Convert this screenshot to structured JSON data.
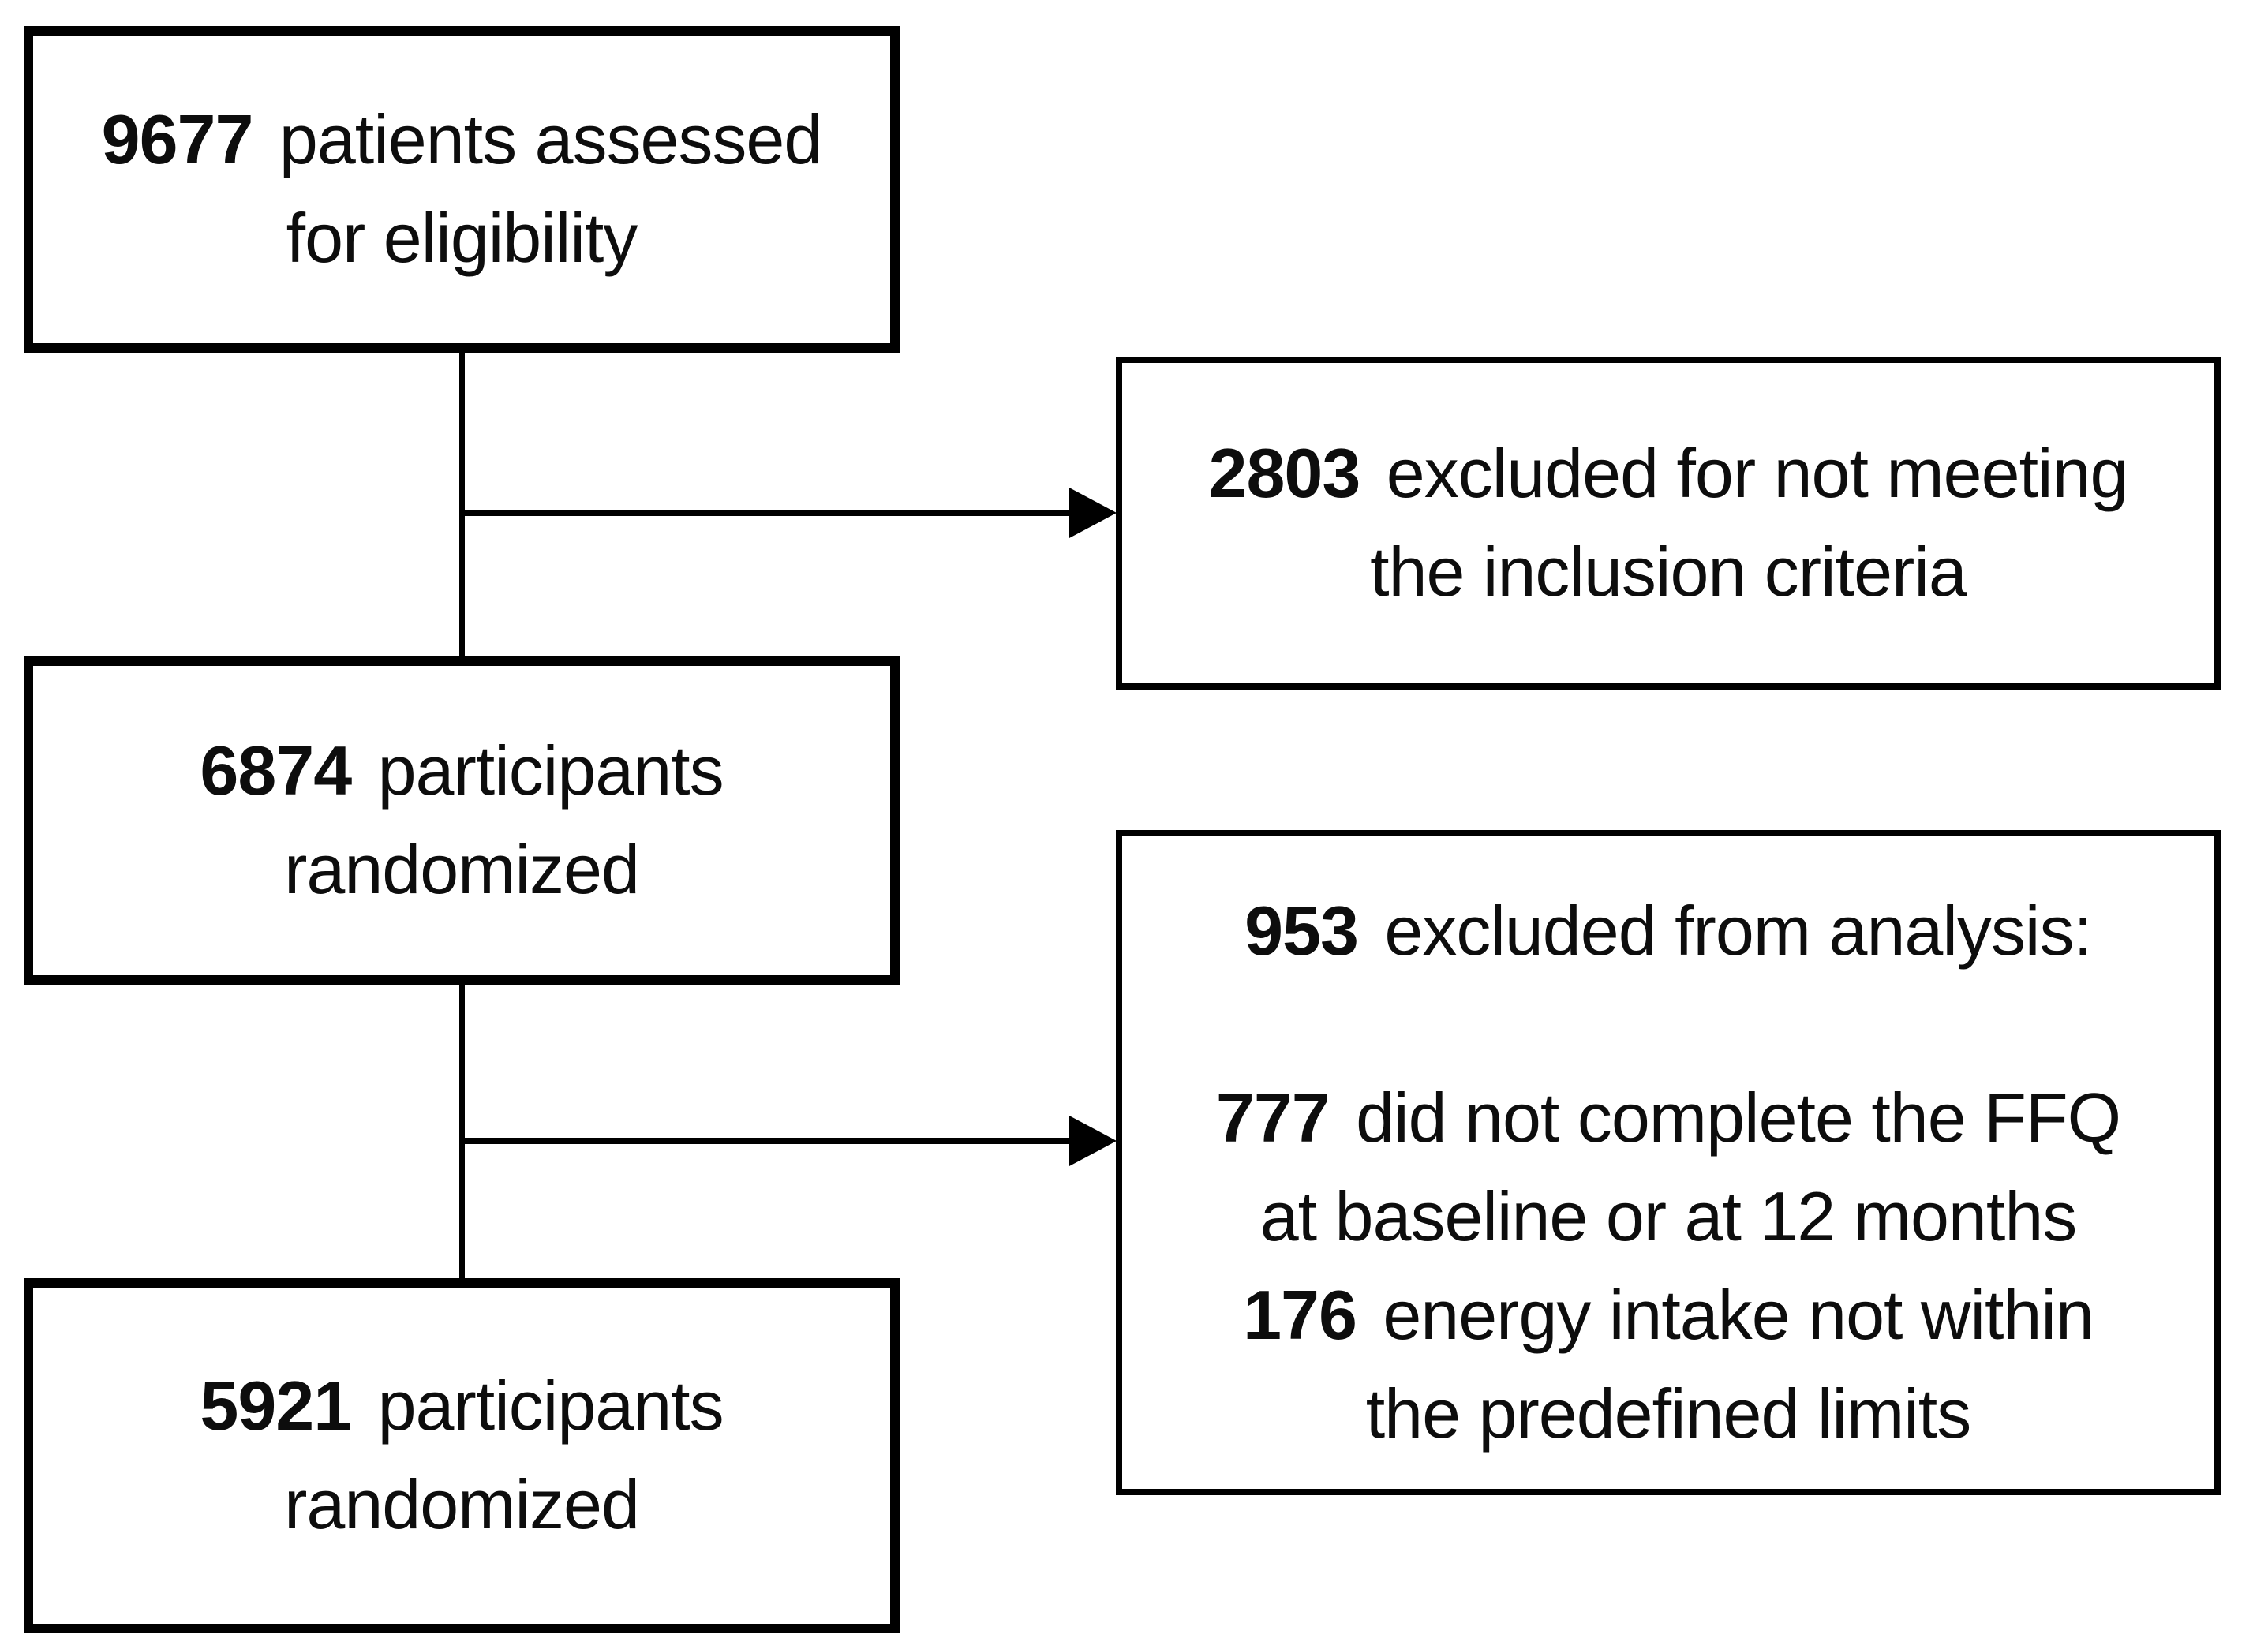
{
  "diagram": {
    "boxes": {
      "assessed": {
        "number": "9677",
        "text": " patients assessed",
        "line2": "for eligibility"
      },
      "excluded1": {
        "number": "2803",
        "text": " excluded for not meeting",
        "line2": "the inclusion criteria"
      },
      "randomized1": {
        "number": "6874",
        "text": " participants",
        "line2": "randomized"
      },
      "excluded2": {
        "heading_number": "953",
        "heading_text": " excluded from analysis:",
        "item1_number": "777",
        "item1_text": " did not complete the FFQ",
        "item1_line2": "at baseline or at 12 months",
        "item2_number": "176",
        "item2_text": " energy intake not within",
        "item2_line2": "the predefined limits"
      },
      "randomized2": {
        "number": "5921",
        "text": " participants",
        "line2": "randomized"
      }
    },
    "colors": {
      "border": "#000000",
      "text": "#0d0d0d",
      "background": "#ffffff"
    }
  }
}
